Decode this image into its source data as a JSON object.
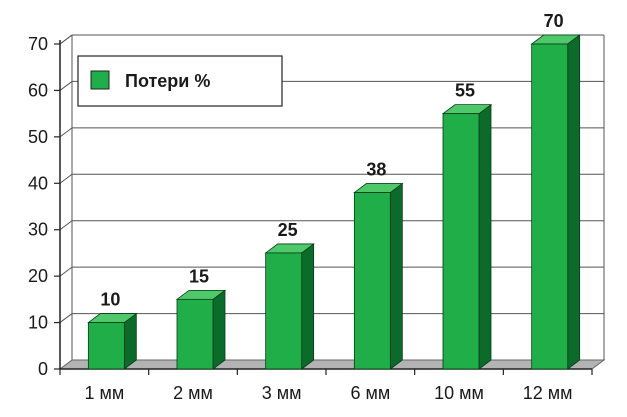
{
  "chart_data": {
    "type": "bar",
    "title": "",
    "xlabel": "",
    "ylabel": "",
    "categories": [
      "1 мм",
      "2 мм",
      "3 мм",
      "6 мм",
      "10 мм",
      "12 мм"
    ],
    "series": [
      {
        "name": "Потери %",
        "values": [
          10,
          15,
          25,
          38,
          55,
          70
        ]
      }
    ],
    "ylim": [
      0,
      70
    ],
    "yticks": [
      "0",
      "10",
      "20",
      "30",
      "40",
      "50",
      "60",
      "70"
    ],
    "data_labels": [
      "10",
      "15",
      "25",
      "38",
      "55",
      "70"
    ],
    "grid": true,
    "three_d": true,
    "legend_position": "top-left",
    "colors": {
      "bar_front": "#1fae48",
      "bar_side": "#0a6b2a",
      "bar_top": "#4fc86a",
      "floor": "#b3b3b3",
      "gridline": "#555555"
    }
  }
}
